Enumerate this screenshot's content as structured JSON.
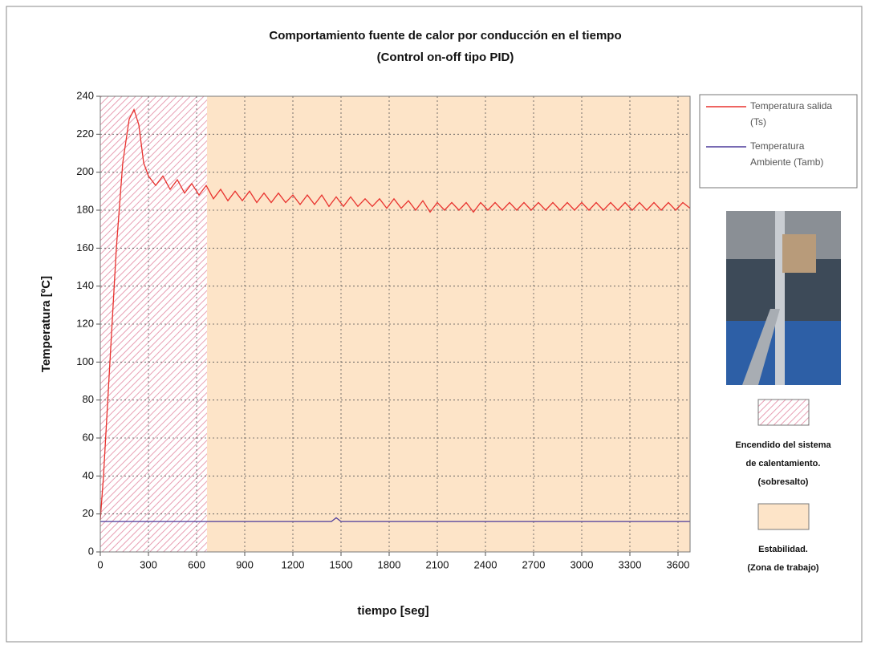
{
  "chart_data": {
    "type": "line",
    "title": [
      "Comportamiento fuente de calor por conducción en el tiempo",
      "(Control on-off tipo PID)"
    ],
    "xlabel": "tiempo [seg]",
    "ylabel": "Temperatura [ºC]",
    "xlim": [
      0,
      3675
    ],
    "ylim": [
      0,
      240
    ],
    "xticks": [
      0,
      300,
      600,
      900,
      1200,
      1500,
      1800,
      2100,
      2400,
      2700,
      3000,
      3300,
      3600
    ],
    "yticks": [
      0,
      20,
      40,
      60,
      80,
      100,
      120,
      140,
      160,
      180,
      200,
      220,
      240
    ],
    "grid": true,
    "zones": [
      {
        "label": [
          "Encendido del sistema",
          "de calentamiento.",
          "(sobresalto)"
        ],
        "xlim": [
          0,
          665
        ],
        "color": "#e8a0b4",
        "pattern": "hatch"
      },
      {
        "label": [
          "Estabilidad.",
          "(Zona de trabajo)"
        ],
        "xlim": [
          665,
          3675
        ],
        "color": "#fde4c8",
        "pattern": "solid"
      }
    ],
    "series": [
      {
        "name": [
          "Temperatura salida",
          "(Ts)"
        ],
        "color": "#e8322e",
        "x": [
          0,
          20,
          60,
          100,
          140,
          180,
          210,
          240,
          270,
          300,
          345,
          390,
          435,
          480,
          525,
          570,
          615,
          660,
          705,
          750,
          795,
          840,
          885,
          930,
          975,
          1020,
          1065,
          1110,
          1155,
          1200,
          1245,
          1290,
          1335,
          1380,
          1425,
          1470,
          1515,
          1560,
          1605,
          1650,
          1695,
          1740,
          1785,
          1830,
          1875,
          1920,
          1965,
          2010,
          2055,
          2100,
          2145,
          2190,
          2235,
          2280,
          2325,
          2370,
          2415,
          2460,
          2505,
          2550,
          2595,
          2640,
          2685,
          2730,
          2775,
          2820,
          2865,
          2910,
          2955,
          3000,
          3045,
          3090,
          3135,
          3180,
          3225,
          3270,
          3315,
          3360,
          3405,
          3450,
          3495,
          3540,
          3585,
          3630,
          3675
        ],
        "values": [
          17,
          40,
          100,
          160,
          205,
          228,
          233,
          225,
          205,
          198,
          193,
          198,
          191,
          196,
          189,
          194,
          188,
          193,
          186,
          191,
          185,
          190,
          185,
          190,
          184,
          189,
          184,
          189,
          184,
          188,
          183,
          188,
          183,
          188,
          182,
          187,
          182,
          187,
          182,
          186,
          182,
          186,
          181,
          186,
          181,
          185,
          180,
          185,
          179,
          184,
          180,
          184,
          180,
          184,
          179,
          184,
          180,
          184,
          180,
          184,
          180,
          184,
          180,
          184,
          180,
          184,
          180,
          184,
          180,
          184,
          180,
          184,
          180,
          184,
          180,
          184,
          180,
          184,
          180,
          184,
          180,
          184,
          180,
          184,
          181
        ]
      },
      {
        "name": [
          "Temperatura",
          "Ambiente (Tamb)"
        ],
        "color": "#4b3a9a",
        "x": [
          0,
          500,
          1000,
          1440,
          1470,
          1500,
          2000,
          2500,
          3000,
          3675
        ],
        "values": [
          16,
          16,
          16,
          16,
          18,
          16,
          16,
          16,
          16,
          16
        ]
      }
    ]
  }
}
